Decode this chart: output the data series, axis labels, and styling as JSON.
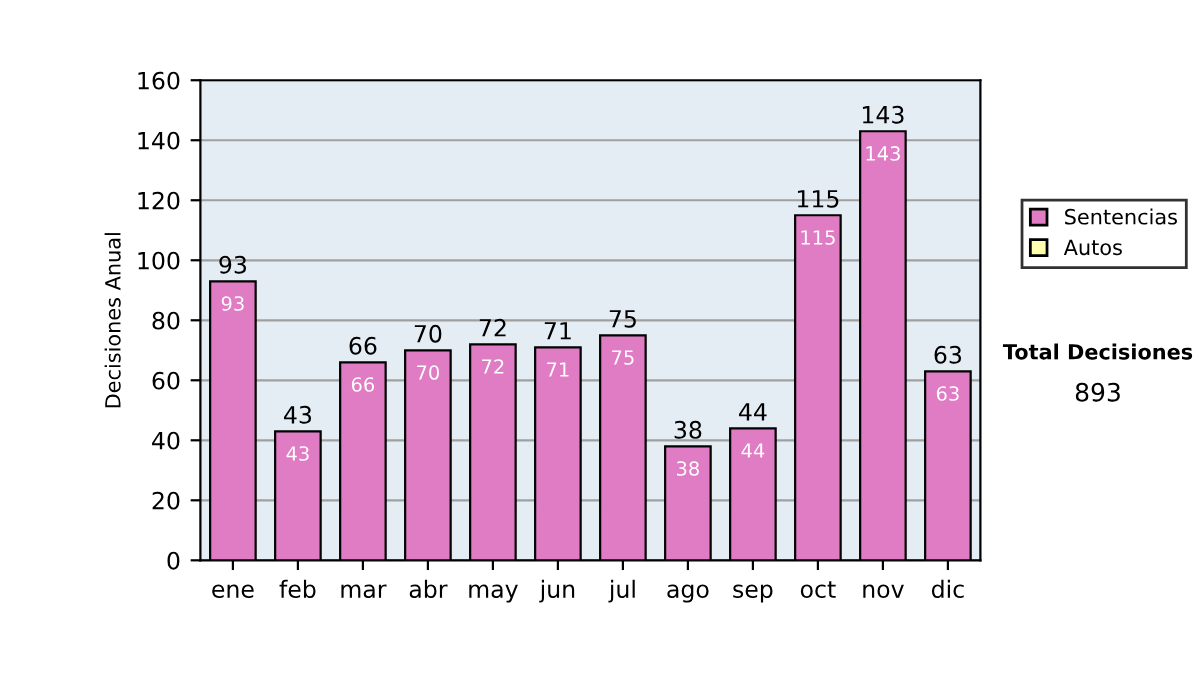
{
  "chart_data": {
    "type": "bar",
    "ylabel": "Decisiones Anual",
    "categories": [
      "ene",
      "feb",
      "mar",
      "abr",
      "may",
      "jun",
      "jul",
      "ago",
      "sep",
      "oct",
      "nov",
      "dic"
    ],
    "series": [
      {
        "name": "Sentencias",
        "color": "#e07cc4",
        "values": [
          93,
          43,
          66,
          70,
          72,
          71,
          75,
          38,
          44,
          115,
          143,
          63
        ],
        "value_labels": [
          "93",
          "43",
          "66",
          "70",
          "72",
          "71",
          "75",
          "38",
          "44",
          "115",
          "143",
          "63"
        ]
      },
      {
        "name": "Autos",
        "color": "#ffffb0",
        "values": [
          null,
          null,
          null,
          null,
          null,
          null,
          null,
          null,
          null,
          null,
          null,
          null
        ]
      }
    ],
    "stacked": true,
    "totals": [
      "93",
      "43",
      "66",
      "70",
      "72",
      "71",
      "75",
      "38",
      "44",
      "115",
      "143",
      "63"
    ],
    "ylim": [
      0,
      160
    ],
    "yticks": [
      0,
      20,
      40,
      60,
      80,
      100,
      120,
      140,
      160
    ],
    "grid": "y",
    "legend": "right",
    "annotations": [
      "Total Decisiones",
      "893"
    ]
  }
}
